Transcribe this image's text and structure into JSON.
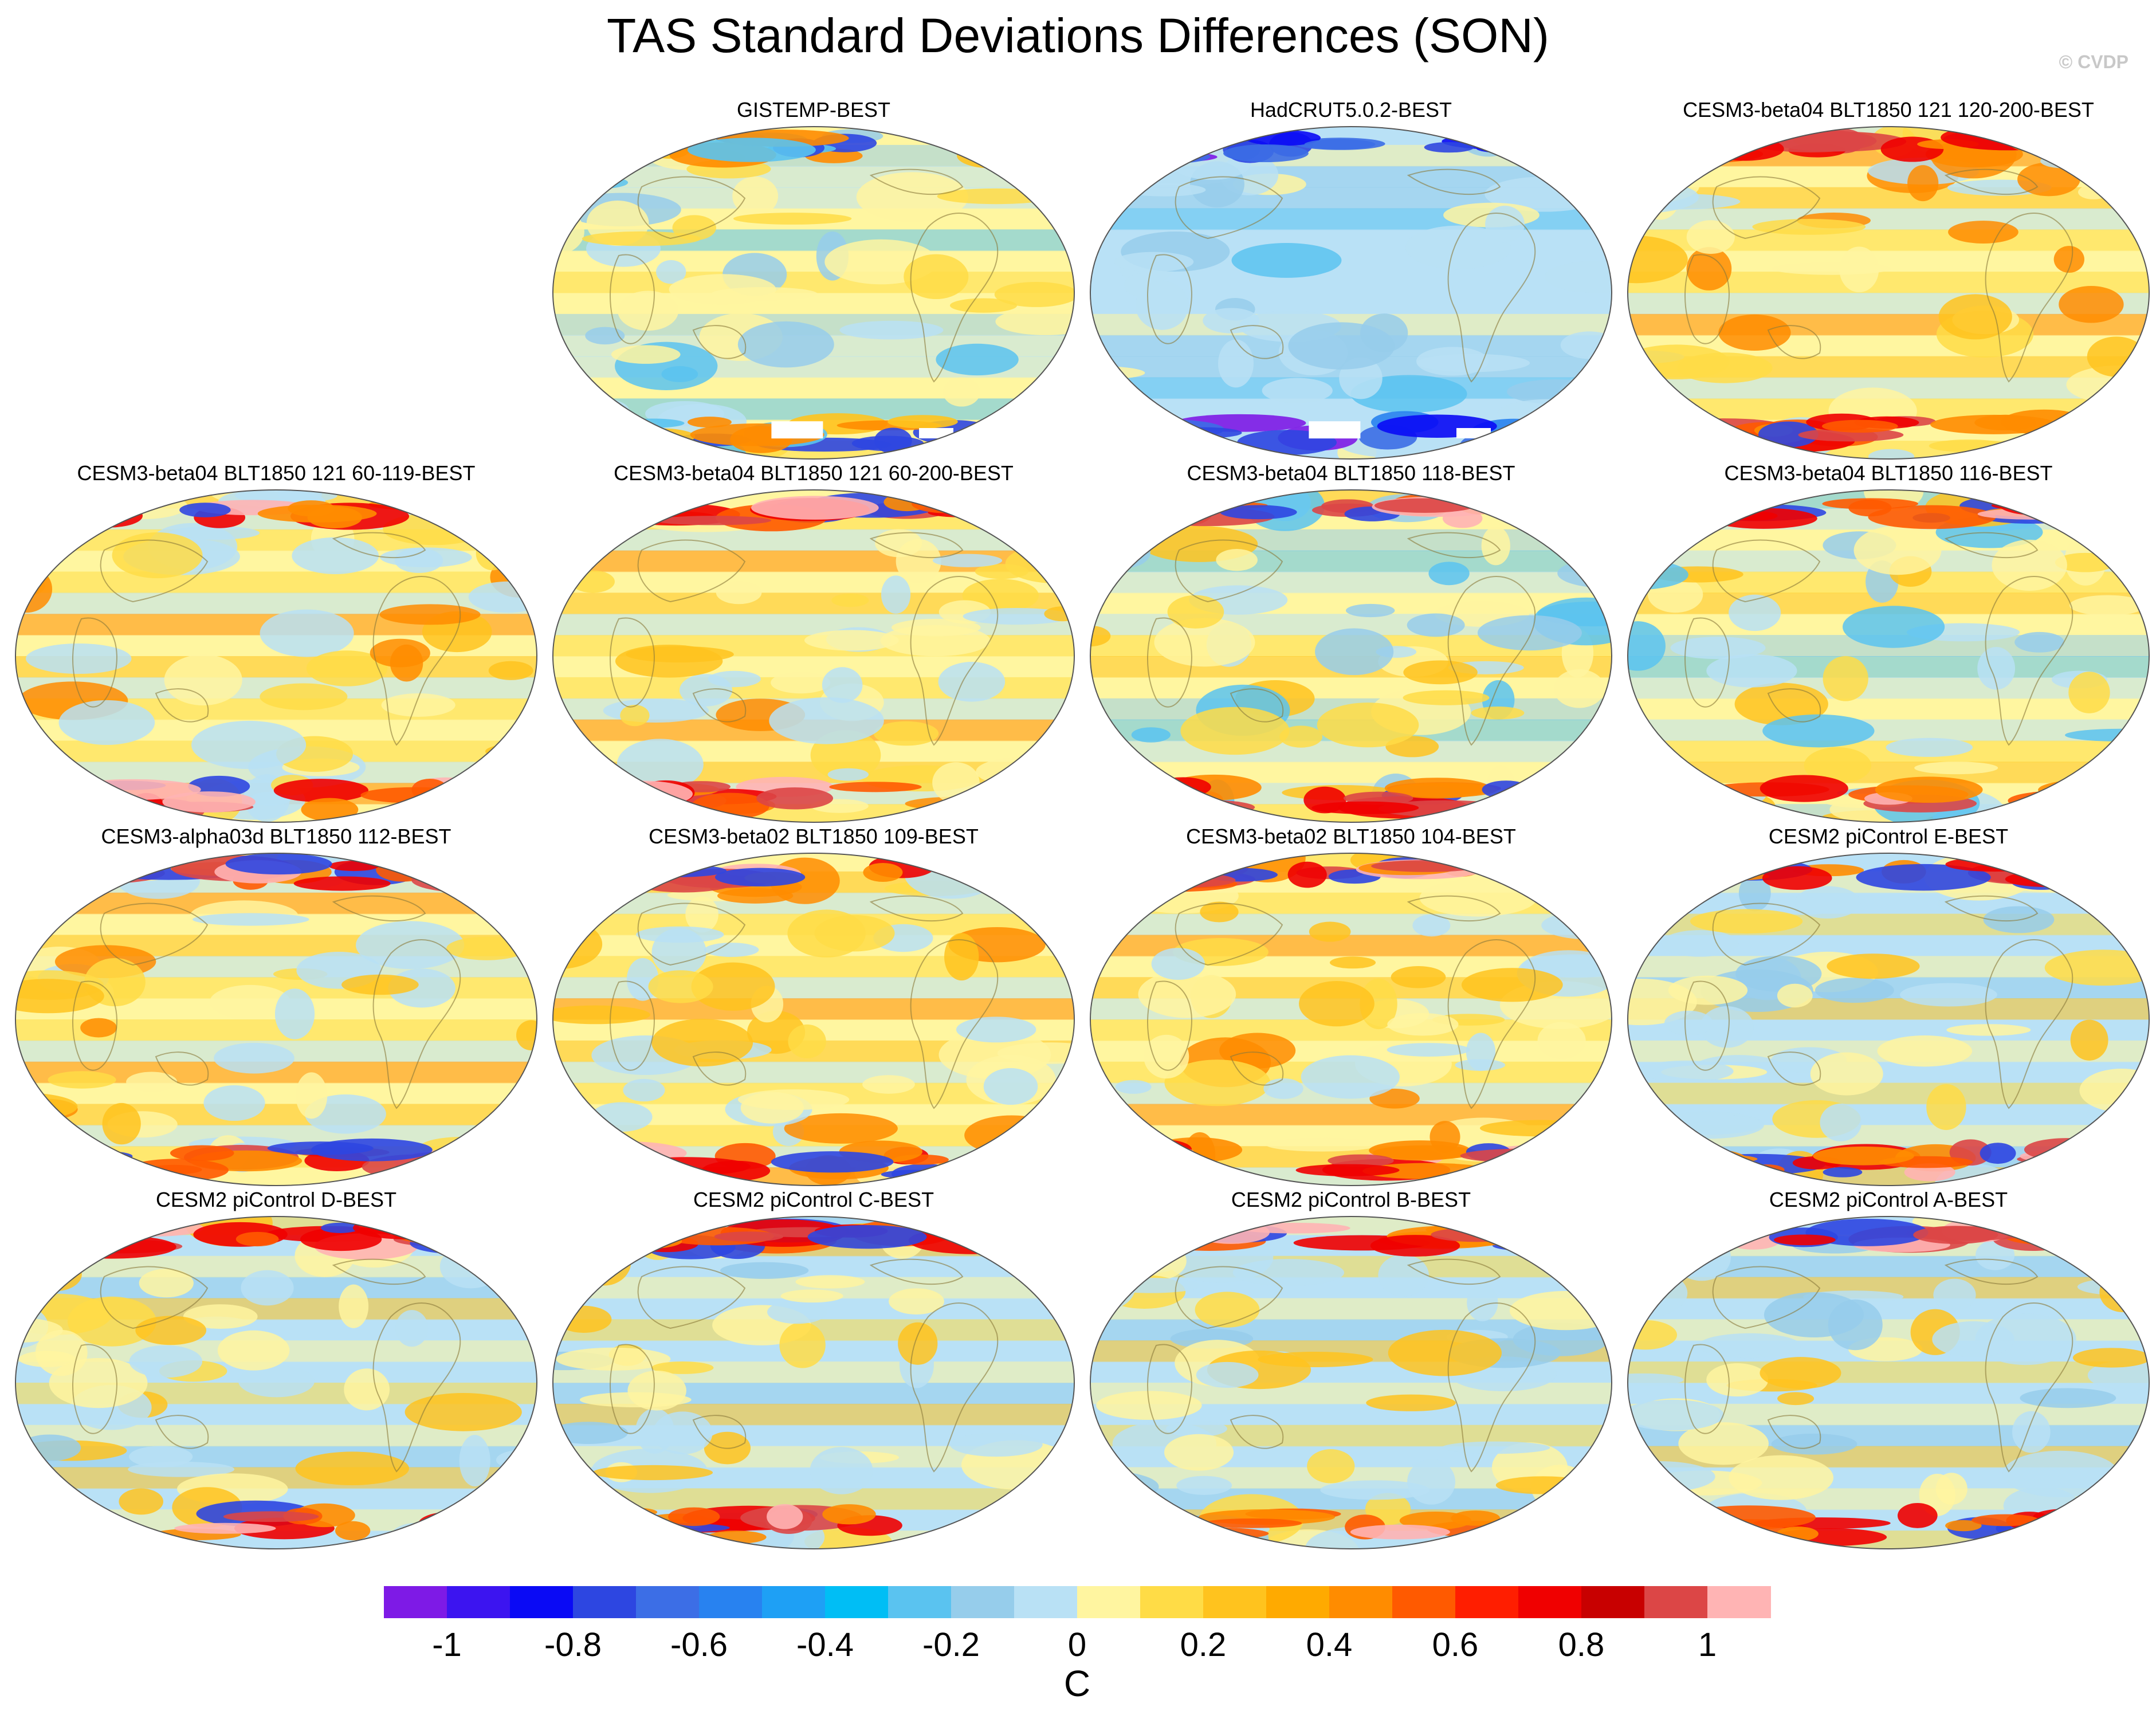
{
  "title": "TAS Standard Deviations Differences (SON)",
  "credit": "© CVDP",
  "panels": [
    {
      "label": "GISTEMP-BEST",
      "style": "obs",
      "missing_south": true
    },
    {
      "label": "HadCRUT5.0.2-BEST",
      "style": "cool",
      "missing_south": true
    },
    {
      "label": "CESM3-beta04 BLT1850 121 120-200-BEST",
      "style": "warm"
    },
    {
      "label": "CESM3-beta04 BLT1850 121 60-119-BEST",
      "style": "warm"
    },
    {
      "label": "CESM3-beta04 BLT1850 121 60-200-BEST",
      "style": "warm"
    },
    {
      "label": "CESM3-beta04 BLT1850 118-BEST",
      "style": "mixed"
    },
    {
      "label": "CESM3-beta04 BLT1850 116-BEST",
      "style": "mixed"
    },
    {
      "label": "CESM3-alpha03d BLT1850 112-BEST",
      "style": "warm"
    },
    {
      "label": "CESM3-beta02 BLT1850 109-BEST",
      "style": "warm"
    },
    {
      "label": "CESM3-beta02 BLT1850 104-BEST",
      "style": "warm"
    },
    {
      "label": "CESM2 piControl E-BEST",
      "style": "mild"
    },
    {
      "label": "CESM2 piControl D-BEST",
      "style": "mild"
    },
    {
      "label": "CESM2 piControl C-BEST",
      "style": "mild"
    },
    {
      "label": "CESM2 piControl B-BEST",
      "style": "mild"
    },
    {
      "label": "CESM2 piControl A-BEST",
      "style": "mild"
    }
  ],
  "colorbar": {
    "colors": [
      "#7e1ae6",
      "#3c14f0",
      "#0a0af5",
      "#2d46e1",
      "#3c6ee6",
      "#2882f0",
      "#1ea0f5",
      "#00bef5",
      "#5ac3f0",
      "#96cdeb",
      "#b9e1f5",
      "#fff5a0",
      "#ffdc46",
      "#ffc31e",
      "#ffaa00",
      "#ff8c00",
      "#ff5a00",
      "#ff1e00",
      "#f00000",
      "#c80000",
      "#dc4646",
      "#ffb4b4"
    ],
    "ticks": [
      "-1",
      "-0.8",
      "-0.6",
      "-0.4",
      "-0.2",
      "0",
      "0.2",
      "0.4",
      "0.6",
      "0.8",
      "1"
    ],
    "units": "C"
  }
}
